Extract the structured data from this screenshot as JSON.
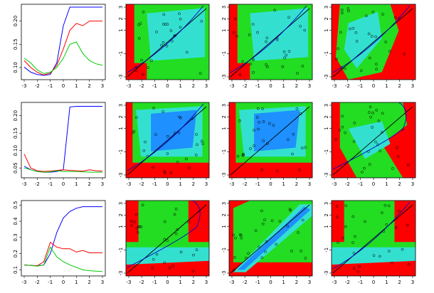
{
  "chart_data": [
    {
      "type": "line",
      "row": 0,
      "x": [
        -3,
        -2.5,
        -2,
        -1.5,
        -1,
        -0.5,
        0,
        0.5,
        1,
        1.5,
        2,
        2.5,
        3
      ],
      "ylim": [
        0.08,
        0.23
      ],
      "xticks": [
        "-3",
        "-2",
        "-1",
        "0",
        "1",
        "2",
        "3"
      ],
      "yticks": [
        "0.10",
        "0.15",
        "0.20"
      ],
      "series": [
        {
          "color": "#0000ff",
          "values": [
            0.101,
            0.09,
            0.085,
            0.083,
            0.085,
            0.11,
            0.19,
            0.23,
            0.23,
            0.23,
            0.23,
            0.23,
            0.23
          ]
        },
        {
          "color": "#ff0000",
          "values": [
            0.115,
            0.1,
            0.09,
            0.084,
            0.088,
            0.105,
            0.14,
            0.18,
            0.195,
            0.19,
            0.2,
            0.2,
            0.2
          ]
        },
        {
          "color": "#00cc00",
          "values": [
            0.12,
            0.11,
            0.095,
            0.087,
            0.09,
            0.1,
            0.12,
            0.15,
            0.155,
            0.13,
            0.115,
            0.108,
            0.105
          ]
        }
      ]
    },
    {
      "type": "line",
      "row": 1,
      "x": [
        -3,
        -2.5,
        -2,
        -1.5,
        -1,
        -0.5,
        0,
        0.5,
        1,
        1.5,
        2,
        2.5,
        3
      ],
      "ylim": [
        0.03,
        0.23
      ],
      "xticks": [
        "-3",
        "-2",
        "-1",
        "0",
        "1",
        "2",
        "3"
      ],
      "yticks": [
        "0.05",
        "0.10",
        "0.15",
        "0.20"
      ],
      "series": [
        {
          "color": "#0000ff",
          "values": [
            0.055,
            0.045,
            0.04,
            0.038,
            0.038,
            0.04,
            0.045,
            0.225,
            0.227,
            0.227,
            0.227,
            0.227,
            0.227
          ]
        },
        {
          "color": "#ff0000",
          "values": [
            0.09,
            0.05,
            0.042,
            0.04,
            0.041,
            0.043,
            0.045,
            0.043,
            0.042,
            0.041,
            0.045,
            0.042,
            0.041
          ]
        },
        {
          "color": "#00cc00",
          "values": [
            0.05,
            0.045,
            0.04,
            0.038,
            0.039,
            0.042,
            0.04,
            0.04,
            0.04,
            0.039,
            0.038,
            0.038,
            0.038
          ]
        }
      ]
    },
    {
      "type": "line",
      "row": 2,
      "x": [
        -3,
        -2.5,
        -2,
        -1.5,
        -1,
        -0.5,
        0,
        0.5,
        1,
        1.5,
        2,
        2.5,
        3
      ],
      "ylim": [
        0.08,
        0.51
      ],
      "xticks": [
        "-3",
        "-2",
        "-1",
        "0",
        "1",
        "2",
        "3"
      ],
      "yticks": [
        "0.1",
        "0.2",
        "0.3",
        "0.4",
        "0.5"
      ],
      "series": [
        {
          "color": "#0000ff",
          "values": [
            0.13,
            0.128,
            0.125,
            0.13,
            0.2,
            0.33,
            0.42,
            0.46,
            0.48,
            0.49,
            0.49,
            0.49,
            0.49
          ]
        },
        {
          "color": "#ff0000",
          "values": [
            0.13,
            0.128,
            0.125,
            0.15,
            0.27,
            0.24,
            0.23,
            0.23,
            0.21,
            0.22,
            0.205,
            0.205,
            0.205
          ]
        },
        {
          "color": "#00cc00",
          "values": [
            0.13,
            0.127,
            0.123,
            0.13,
            0.24,
            0.18,
            0.15,
            0.13,
            0.115,
            0.1,
            0.095,
            0.092,
            0.09
          ]
        }
      ]
    }
  ],
  "heatmaps": [
    {
      "row": 0,
      "col": 1,
      "kind": "corner-bl",
      "curves": "two-lines"
    },
    {
      "row": 0,
      "col": 2,
      "kind": "corner-bl",
      "curves": "two-lines"
    },
    {
      "row": 0,
      "col": 3,
      "kind": "wedge",
      "curves": "two-lines"
    },
    {
      "row": 1,
      "col": 1,
      "kind": "blue-core",
      "curves": "two-lines"
    },
    {
      "row": 1,
      "col": 2,
      "kind": "blue-core",
      "curves": "one-line"
    },
    {
      "row": 1,
      "col": 3,
      "kind": "cross",
      "curves": "curve-back"
    },
    {
      "row": 2,
      "col": 1,
      "kind": "band-low",
      "curves": "curve-back"
    },
    {
      "row": 2,
      "col": 2,
      "kind": "diag-blue",
      "curves": "one-line"
    },
    {
      "row": 2,
      "col": 3,
      "kind": "band-low",
      "curves": "two-lines"
    }
  ],
  "heat_ticks": [
    "-3",
    "-2",
    "-1",
    "0",
    "1",
    "2",
    "3"
  ],
  "heat_yticks": [
    "-3",
    "-1",
    "1",
    "2",
    "3"
  ],
  "colors": {
    "red": "#ff0000",
    "green": "#22dd22",
    "cyan": "#33e0d0",
    "blue": "#1e90ff"
  }
}
